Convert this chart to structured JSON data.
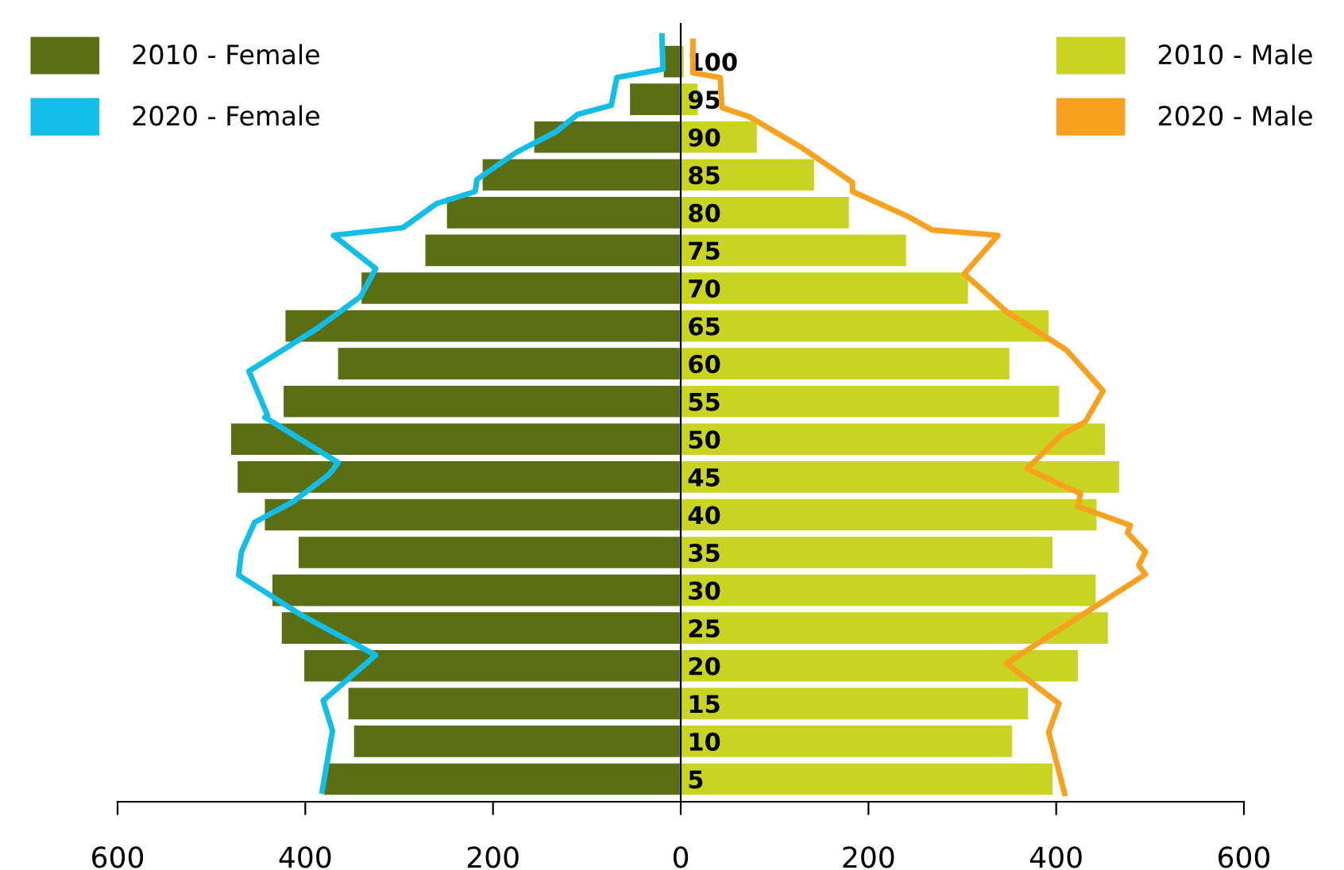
{
  "chart_data": {
    "type": "bar",
    "orientation": "horizontal",
    "stacked": true,
    "x": [
      5,
      10,
      15,
      20,
      25,
      30,
      35,
      40,
      45,
      50,
      55,
      60,
      65,
      70,
      75,
      80,
      85,
      90,
      95,
      100
    ],
    "series": [
      {
        "name": "2010 - Female",
        "color": "#5a6e14",
        "values": [
          -381,
          -349,
          -355,
          -402,
          -426,
          -436,
          -408,
          -444,
          -473,
          -480,
          -424,
          -366,
          -422,
          -341,
          -273,
          -250,
          -212,
          -157,
          -55,
          -19
        ]
      },
      {
        "name": "2020 - Female",
        "type": "line",
        "color": "#12bde8",
        "x": [
          3.4,
          11.4,
          15.4,
          21.4,
          26.7,
          32.0,
          35.1,
          39.0,
          41.8,
          45.3,
          46.9,
          52.9,
          53.1,
          59.0,
          64.7,
          68.9,
          72.6,
          77.0,
          78.0,
          81.2,
          82.8,
          84.4,
          88.0,
          90.7,
          93.0,
          94.2,
          97.9,
          99.0,
          103.4
        ],
        "values": [
          -382,
          -371,
          -381,
          -325,
          -404,
          -471,
          -468,
          -454,
          -412,
          -375,
          -365,
          -443,
          -440,
          -460,
          -387,
          -341,
          -325,
          -370,
          -296,
          -260,
          -219,
          -217,
          -175,
          -133,
          -110,
          -74,
          -68,
          -19,
          -20
        ]
      },
      {
        "name": "2010 - Male",
        "color": "#c9d322",
        "values": [
          397,
          354,
          371,
          424,
          456,
          443,
          397,
          444,
          468,
          453,
          404,
          351,
          393,
          307,
          241,
          180,
          143,
          82,
          19,
          4
        ]
      },
      {
        "name": "2020 - Male",
        "type": "line",
        "color": "#f7a11f",
        "x": [
          3.1,
          11.2,
          15.0,
          20.3,
          32.1,
          33.3,
          35.1,
          37.6,
          38.6,
          41.1,
          42.8,
          46.1,
          50.6,
          52.3,
          56.4,
          61.8,
          66.9,
          71.9,
          77.0,
          77.7,
          79.5,
          82.8,
          84.0,
          88.6,
          92.7,
          93.9,
          97.9,
          98.5,
          102.7
        ],
        "values": [
          409,
          392,
          403,
          347,
          495,
          488,
          495,
          476,
          479,
          423,
          426,
          369,
          406,
          431,
          450,
          411,
          347,
          302,
          338,
          268,
          242,
          183,
          183,
          129,
          73,
          44,
          42,
          13,
          13
        ]
      }
    ],
    "xlim": [
      -600,
      600
    ],
    "xticks": [
      {
        "value": -600,
        "label": "600"
      },
      {
        "value": -400,
        "label": "400"
      },
      {
        "value": -200,
        "label": "200"
      },
      0,
      200,
      400,
      600
    ],
    "ylim": [
      2,
      105
    ],
    "yticks": [
      5,
      10,
      15,
      20,
      25,
      30,
      35,
      40,
      45,
      50,
      55,
      60,
      65,
      70,
      75,
      80,
      85,
      90,
      95,
      100
    ],
    "grid": false,
    "legend": "top"
  }
}
